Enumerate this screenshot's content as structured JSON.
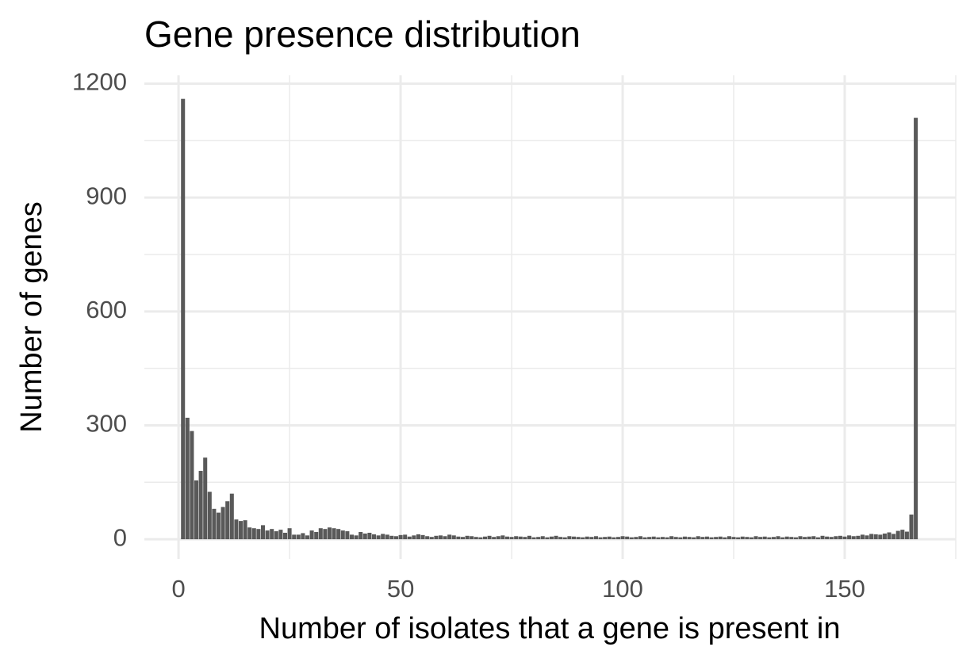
{
  "chart_data": {
    "type": "bar",
    "title": "Gene presence distribution",
    "xlabel": "Number of isolates that a gene is present in",
    "ylabel": "Number of genes",
    "color": "#595959",
    "x": [
      1,
      2,
      3,
      4,
      5,
      6,
      7,
      8,
      9,
      10,
      11,
      12,
      13,
      14,
      15,
      16,
      17,
      18,
      19,
      20,
      21,
      22,
      23,
      24,
      25,
      26,
      27,
      28,
      29,
      30,
      31,
      32,
      33,
      34,
      35,
      36,
      37,
      38,
      39,
      40,
      41,
      42,
      43,
      44,
      45,
      46,
      47,
      48,
      49,
      50,
      51,
      52,
      53,
      54,
      55,
      56,
      57,
      58,
      59,
      60,
      61,
      62,
      63,
      64,
      65,
      66,
      67,
      68,
      69,
      70,
      71,
      72,
      73,
      74,
      75,
      76,
      77,
      78,
      79,
      80,
      81,
      82,
      83,
      84,
      85,
      86,
      87,
      88,
      89,
      90,
      91,
      92,
      93,
      94,
      95,
      96,
      97,
      98,
      99,
      100,
      101,
      102,
      103,
      104,
      105,
      106,
      107,
      108,
      109,
      110,
      111,
      112,
      113,
      114,
      115,
      116,
      117,
      118,
      119,
      120,
      121,
      122,
      123,
      124,
      125,
      126,
      127,
      128,
      129,
      130,
      131,
      132,
      133,
      134,
      135,
      136,
      137,
      138,
      139,
      140,
      141,
      142,
      143,
      144,
      145,
      146,
      147,
      148,
      149,
      150,
      151,
      152,
      153,
      154,
      155,
      156,
      157,
      158,
      159,
      160,
      161,
      162,
      163,
      164,
      165,
      166
    ],
    "values": [
      1160,
      320,
      285,
      155,
      180,
      215,
      125,
      80,
      70,
      85,
      100,
      120,
      52,
      48,
      50,
      31,
      29,
      27,
      37,
      23,
      27,
      21,
      25,
      17,
      29,
      12,
      12,
      16,
      10,
      23,
      19,
      29,
      27,
      31,
      29,
      27,
      23,
      21,
      12,
      10,
      19,
      15,
      17,
      13,
      10,
      14,
      12,
      9,
      8,
      11,
      12,
      7,
      10,
      13,
      11,
      8,
      6,
      9,
      10,
      8,
      12,
      10,
      7,
      6,
      9,
      8,
      6,
      5,
      7,
      9,
      6,
      8,
      10,
      7,
      6,
      8,
      7,
      6,
      9,
      5,
      6,
      8,
      5,
      7,
      9,
      6,
      5,
      8,
      7,
      6,
      5,
      7,
      6,
      8,
      5,
      6,
      7,
      5,
      6,
      8,
      7,
      5,
      6,
      8,
      5,
      6,
      7,
      5,
      6,
      5,
      8,
      6,
      5,
      7,
      6,
      5,
      8,
      6,
      7,
      5,
      6,
      7,
      5,
      8,
      6,
      5,
      7,
      6,
      5,
      8,
      6,
      7,
      5,
      6,
      8,
      5,
      7,
      6,
      5,
      8,
      6,
      7,
      8,
      5,
      9,
      7,
      6,
      8,
      9,
      7,
      10,
      8,
      9,
      12,
      10,
      14,
      13,
      12,
      15,
      18,
      14,
      22,
      25,
      20,
      65,
      1110
    ],
    "bar_width": 0.9,
    "xlim": [
      -7.7,
      175
    ],
    "ylim": [
      -52,
      1222
    ],
    "xticks": [
      0,
      50,
      100,
      150
    ],
    "yticks": [
      0,
      300,
      600,
      900,
      1200
    ],
    "xminor": [
      25,
      75,
      125,
      175
    ],
    "yminor": [
      150,
      450,
      750,
      1050
    ],
    "grid": true
  }
}
